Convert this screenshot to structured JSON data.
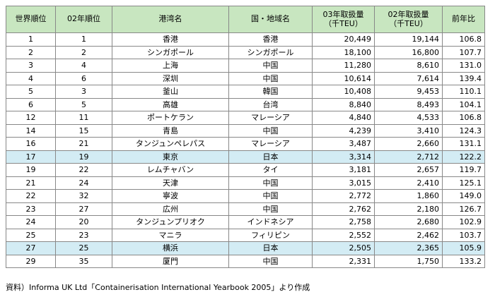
{
  "table": {
    "headers": [
      "世界順位",
      "02年順位",
      "港湾名",
      "国・地域名",
      "03年取扱量\n（千TEU）",
      "02年取扱量\n（千TEU）",
      "前年比"
    ],
    "rows": [
      {
        "r": "1",
        "p": "1",
        "port": "香港",
        "country": "香港",
        "v03": "20,449",
        "v02": "19,144",
        "ratio": "106.8",
        "hl": false
      },
      {
        "r": "2",
        "p": "2",
        "port": "シンガポール",
        "country": "シンガポール",
        "v03": "18,100",
        "v02": "16,800",
        "ratio": "107.7",
        "hl": false
      },
      {
        "r": "3",
        "p": "4",
        "port": "上海",
        "country": "中国",
        "v03": "11,280",
        "v02": "8,610",
        "ratio": "131.0",
        "hl": false
      },
      {
        "r": "4",
        "p": "6",
        "port": "深圳",
        "country": "中国",
        "v03": "10,614",
        "v02": "7,614",
        "ratio": "139.4",
        "hl": false
      },
      {
        "r": "5",
        "p": "3",
        "port": "釜山",
        "country": "韓国",
        "v03": "10,408",
        "v02": "9,453",
        "ratio": "110.1",
        "hl": false
      },
      {
        "r": "6",
        "p": "5",
        "port": "高雄",
        "country": "台湾",
        "v03": "8,840",
        "v02": "8,493",
        "ratio": "104.1",
        "hl": false
      },
      {
        "r": "12",
        "p": "11",
        "port": "ポートケラン",
        "country": "マレーシア",
        "v03": "4,840",
        "v02": "4,533",
        "ratio": "106.8",
        "hl": false
      },
      {
        "r": "14",
        "p": "15",
        "port": "青島",
        "country": "中国",
        "v03": "4,239",
        "v02": "3,410",
        "ratio": "124.3",
        "hl": false
      },
      {
        "r": "16",
        "p": "21",
        "port": "タンジュンペレパス",
        "country": "マレーシア",
        "v03": "3,487",
        "v02": "2,660",
        "ratio": "131.1",
        "hl": false
      },
      {
        "r": "17",
        "p": "19",
        "port": "東京",
        "country": "日本",
        "v03": "3,314",
        "v02": "2,712",
        "ratio": "122.2",
        "hl": true
      },
      {
        "r": "19",
        "p": "22",
        "port": "レムチャバン",
        "country": "タイ",
        "v03": "3,181",
        "v02": "2,657",
        "ratio": "119.7",
        "hl": false
      },
      {
        "r": "21",
        "p": "24",
        "port": "天津",
        "country": "中国",
        "v03": "3,015",
        "v02": "2,410",
        "ratio": "125.1",
        "hl": false
      },
      {
        "r": "22",
        "p": "32",
        "port": "寧波",
        "country": "中国",
        "v03": "2,772",
        "v02": "1,860",
        "ratio": "149.0",
        "hl": false
      },
      {
        "r": "23",
        "p": "27",
        "port": "広州",
        "country": "中国",
        "v03": "2,762",
        "v02": "2,180",
        "ratio": "126.7",
        "hl": false
      },
      {
        "r": "24",
        "p": "20",
        "port": "タンジュンプリオク",
        "country": "インドネシア",
        "v03": "2,758",
        "v02": "2,680",
        "ratio": "102.9",
        "hl": false
      },
      {
        "r": "25",
        "p": "23",
        "port": "マニラ",
        "country": "フィリピン",
        "v03": "2,552",
        "v02": "2,462",
        "ratio": "103.7",
        "hl": false
      },
      {
        "r": "27",
        "p": "25",
        "port": "横浜",
        "country": "日本",
        "v03": "2,505",
        "v02": "2,365",
        "ratio": "105.9",
        "hl": true
      },
      {
        "r": "29",
        "p": "35",
        "port": "厦門",
        "country": "中国",
        "v03": "2,331",
        "v02": "1,750",
        "ratio": "133.2",
        "hl": false
      }
    ]
  },
  "note": "資料）Informa UK Ltd「Containerisation International Yearbook 2005」より作成",
  "colors": {
    "header_bg": "#c8e6c0",
    "highlight_bg": "#d3ecf4",
    "border": "#888888"
  }
}
